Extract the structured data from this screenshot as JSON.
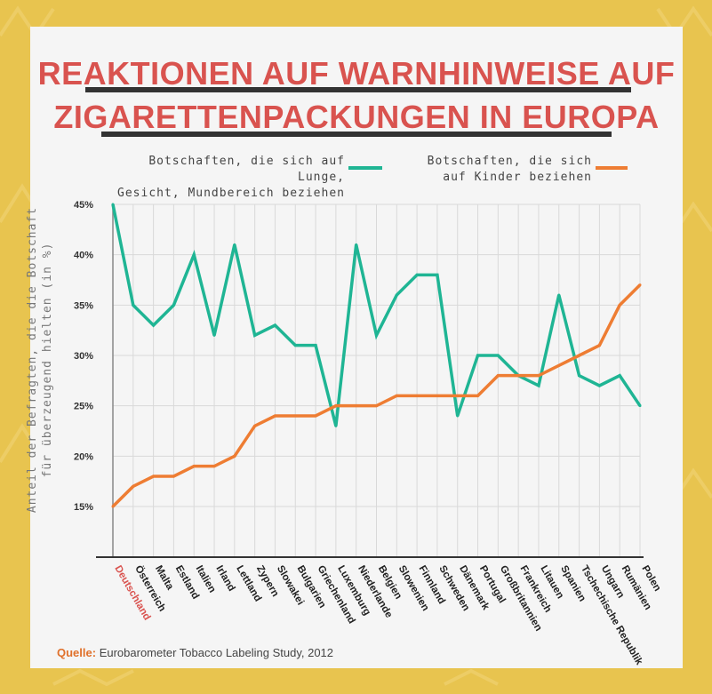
{
  "title_line1": "REAKTIONEN AUF WARNHINWEISE AUF",
  "title_line2": "ZIGARETTENPACKUNGEN IN EUROPA",
  "legend": {
    "series1_line1": "Botschaften, die sich auf Lunge,",
    "series1_line2": "Gesicht, Mundbereich beziehen",
    "series2_line1": "Botschaften, die sich",
    "series2_line2": "auf Kinder beziehen"
  },
  "ylabel_line1": "Anteil der Befragten, die die Botschaft",
  "ylabel_line2": "für überzeugend hielten (in %)",
  "source_label": "Quelle:",
  "source_text": "Eurobarometer Tobacco Labeling Study, 2012",
  "colors": {
    "background": "#e8c44f",
    "card": "#f5f5f5",
    "title": "#d9534f",
    "series1": "#1fb594",
    "series2": "#ee7d33",
    "highlight": "#d9534f"
  },
  "chart_data": {
    "type": "line",
    "categories": [
      "Deutschland",
      "Österreich",
      "Malta",
      "Estland",
      "Italien",
      "Irland",
      "Lettland",
      "Zypern",
      "Slowakei",
      "Bulgarien",
      "Griechenland",
      "Luxemburg",
      "Niederlande",
      "Belgien",
      "Slowenien",
      "Finnland",
      "Schweden",
      "Dänemark",
      "Portugal",
      "Großbritannien",
      "Frankreich",
      "Litauen",
      "Spanien",
      "Tschechische Republik",
      "Ungarn",
      "Rumänien",
      "Polen"
    ],
    "highlight_category": "Deutschland",
    "series": [
      {
        "name": "Botschaften, die sich auf Lunge, Gesicht, Mundbereich beziehen",
        "color": "#1fb594",
        "values": [
          45,
          35,
          33,
          35,
          40,
          32,
          41,
          32,
          33,
          31,
          31,
          23,
          41,
          32,
          36,
          38,
          38,
          24,
          30,
          30,
          28,
          27,
          36,
          28,
          27,
          28,
          25
        ]
      },
      {
        "name": "Botschaften, die sich auf Kinder beziehen",
        "color": "#ee7d33",
        "values": [
          15,
          17,
          18,
          18,
          19,
          19,
          20,
          23,
          24,
          24,
          24,
          25,
          25,
          25,
          26,
          26,
          26,
          26,
          26,
          28,
          28,
          28,
          29,
          30,
          31,
          35,
          37
        ]
      }
    ],
    "ylim": [
      10,
      45
    ],
    "yticks": [
      "15%",
      "20%",
      "25%",
      "30%",
      "35%",
      "40%",
      "45%"
    ],
    "ytick_values": [
      15,
      20,
      25,
      30,
      35,
      40,
      45
    ],
    "grid": true,
    "legend_position": "top"
  }
}
